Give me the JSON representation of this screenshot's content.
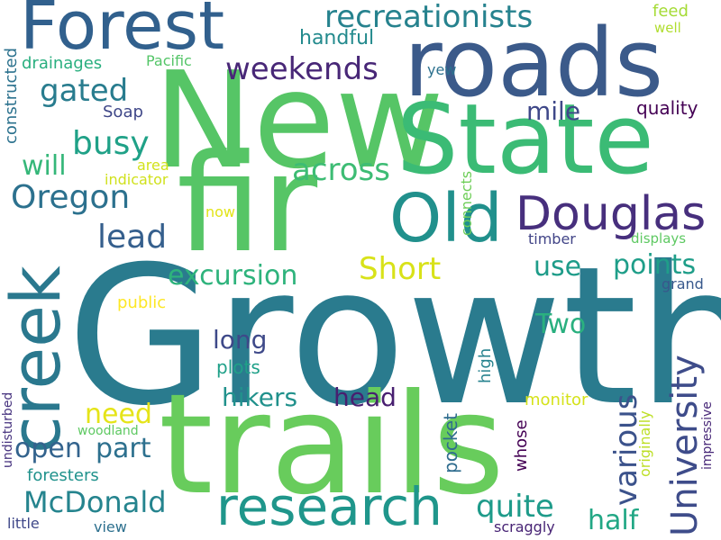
{
  "words": {
    "growth": "Growth",
    "new": "New",
    "fir": "fir",
    "roads": "roads",
    "state": "State",
    "trails": "trails",
    "forest": "Forest",
    "creek": "creek",
    "old": "Old",
    "douglas": "Douglas",
    "research": "research",
    "university": "University",
    "recreationists": "recreationists",
    "weekends": "weekends",
    "gated": "gated",
    "busy": "busy",
    "oregon": "Oregon",
    "across": "across",
    "will": "will",
    "lead": "lead",
    "excursion": "excursion",
    "short": "Short",
    "points": "points",
    "use": "use",
    "two": "Two",
    "long": "long",
    "various": "various",
    "mcdonald": "McDonald",
    "open": "open",
    "part": "part",
    "hikers": "hikers",
    "head": "head",
    "need": "need",
    "quite": "quite",
    "half": "half",
    "handful": "handful",
    "mile": "mile",
    "feed": "feed",
    "well": "well",
    "yew": "yew",
    "quality": "quality",
    "drainages": "drainages",
    "pacific": "Pacific",
    "soap": "Soap",
    "constructed": "constructed",
    "area": "area",
    "indicator": "indicator",
    "now": "now",
    "connects": "connects",
    "timber": "timber",
    "displays": "displays",
    "grand": "grand",
    "public": "public",
    "plots": "plots",
    "high": "high",
    "monitor": "monitor",
    "woodland": "woodland",
    "pocket": "pocket",
    "whose": "whose",
    "originally": "originally",
    "impressive": "impressive",
    "undisturbed": "undisturbed",
    "foresters": "foresters",
    "little": "little",
    "view": "view",
    "scraggly": "scraggly"
  },
  "colors": {
    "growth": "#2a7b8e",
    "new": "#56c566",
    "fir": "#56c566",
    "roads": "#3b5a8a",
    "state": "#3bbb75",
    "trails": "#68cc5c",
    "forest": "#31608d",
    "creek": "#2a788e",
    "old": "#21908c",
    "douglas": "#472f7d",
    "research": "#1f968b",
    "university": "#3e4c8a",
    "recreationists": "#26828e",
    "weekends": "#482777",
    "gated": "#287c8e",
    "busy": "#1fa187",
    "oregon": "#2c718e",
    "across": "#3dbc74",
    "will": "#35b779",
    "lead": "#355f8d",
    "excursion": "#2eb37c",
    "short": "#d8e219",
    "points": "#1f9e89",
    "use": "#1e9c89",
    "two": "#2ab07f",
    "long": "#3e4989",
    "various": "#3b528b",
    "mcdonald": "#25848e",
    "open": "#33638d",
    "part": "#2d708e",
    "hikers": "#21918c",
    "head": "#481f70",
    "need": "#e5e419",
    "quite": "#1e9b8a",
    "half": "#22a785",
    "handful": "#238a8d",
    "mile": "#3f4889",
    "feed": "#a5db36",
    "well": "#b0dd2f",
    "yew": "#2c718e",
    "quality": "#440154",
    "drainages": "#29af7f",
    "pacific": "#54c568",
    "soap": "#3f4788",
    "constructed": "#2c728e",
    "area": "#d2e21b",
    "indicator": "#d0e11c",
    "now": "#e2e418",
    "connects": "#6ece58",
    "timber": "#414487",
    "displays": "#5ec962",
    "grand": "#38588c",
    "public": "#fde725",
    "plots": "#1fa088",
    "high": "#26828e",
    "monitor": "#d5e21a",
    "woodland": "#5ec962",
    "pocket": "#2f6c8e",
    "whose": "#440154",
    "originally": "#bddf26",
    "impressive": "#482878",
    "undisturbed": "#46327e",
    "foresters": "#20928c",
    "little": "#3f4889",
    "view": "#2d708e",
    "scraggly": "#482475"
  }
}
